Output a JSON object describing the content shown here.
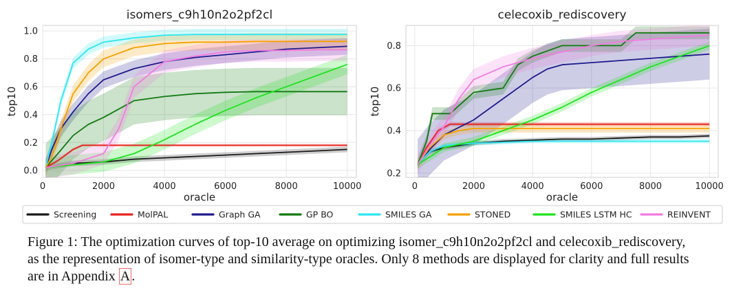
{
  "caption": {
    "line1": "Figure 1: The optimization curves of top-10 average on optimizing isomer_c9h10n2o2pf2cl and celecoxib_rediscovery,",
    "line2": "as the representation of isomer-type and similarity-type oracles. Only 8 methods are displayed for clarity and full results",
    "line3_pre": "are in Appendix ",
    "line3_ref": "A",
    "line3_post": "."
  },
  "chart_data": [
    {
      "type": "line",
      "title": "isomers_c9h10n2o2pf2cl",
      "xlabel": "oracle",
      "ylabel": "top10",
      "xlim": [
        0,
        10300
      ],
      "ylim": [
        -0.05,
        1.04
      ],
      "xticks": [
        0,
        2000,
        4000,
        6000,
        8000,
        10000
      ],
      "yticks": [
        0.0,
        0.2,
        0.4,
        0.6,
        0.8,
        1.0
      ],
      "ytick_labels": [
        "0.0",
        "0.2",
        "0.4",
        "0.6",
        "0.8",
        "1.0"
      ],
      "grid": true,
      "series": [
        {
          "name": "Screening",
          "x": [
            100,
            1000,
            2000,
            3000,
            4000,
            5000,
            6000,
            7000,
            8000,
            9000,
            10000
          ],
          "y": [
            0.02,
            0.05,
            0.06,
            0.08,
            0.09,
            0.1,
            0.11,
            0.12,
            0.13,
            0.14,
            0.15
          ],
          "band": 0.02
        },
        {
          "name": "MolPAL",
          "x": [
            100,
            500,
            1000,
            1300,
            1600,
            10000
          ],
          "y": [
            0.02,
            0.07,
            0.15,
            0.18,
            0.18,
            0.18
          ],
          "band": 0.01
        },
        {
          "name": "Graph GA",
          "x": [
            100,
            300,
            600,
            1000,
            1500,
            2000,
            3000,
            4000,
            5000,
            6000,
            7000,
            8000,
            9000,
            10000
          ],
          "y": [
            0.02,
            0.15,
            0.3,
            0.42,
            0.55,
            0.65,
            0.73,
            0.78,
            0.81,
            0.83,
            0.85,
            0.87,
            0.88,
            0.89
          ],
          "band": 0.06
        },
        {
          "name": "GP BO",
          "x": [
            100,
            500,
            1000,
            1500,
            2000,
            2500,
            3000,
            4000,
            5000,
            6000,
            7000,
            8000,
            9000,
            10000
          ],
          "y": [
            0.02,
            0.12,
            0.25,
            0.33,
            0.38,
            0.44,
            0.5,
            0.53,
            0.55,
            0.56,
            0.565,
            0.565,
            0.565,
            0.565
          ],
          "band": 0.17
        },
        {
          "name": "SMILES GA",
          "x": [
            100,
            300,
            600,
            1000,
            1500,
            2000,
            3000,
            4000,
            5000,
            6000,
            7000,
            8000,
            9000,
            10000
          ],
          "y": [
            0.02,
            0.2,
            0.5,
            0.77,
            0.87,
            0.92,
            0.95,
            0.97,
            0.975,
            0.975,
            0.975,
            0.975,
            0.975,
            0.975
          ],
          "band": 0.04
        },
        {
          "name": "STONED",
          "x": [
            100,
            300,
            600,
            1000,
            1500,
            2000,
            3000,
            4000,
            5000,
            6000,
            7000,
            8000,
            9000,
            10000
          ],
          "y": [
            0.02,
            0.1,
            0.3,
            0.55,
            0.7,
            0.8,
            0.88,
            0.91,
            0.92,
            0.92,
            0.925,
            0.925,
            0.925,
            0.925
          ],
          "band": 0.06
        },
        {
          "name": "SMILES LSTM HC",
          "x": [
            100,
            1000,
            2000,
            3000,
            4000,
            5000,
            6000,
            7000,
            8000,
            9000,
            10000
          ],
          "y": [
            0.02,
            0.04,
            0.06,
            0.12,
            0.22,
            0.33,
            0.43,
            0.52,
            0.6,
            0.68,
            0.76
          ],
          "band": 0.07
        },
        {
          "name": "REINVENT",
          "x": [
            100,
            1000,
            2000,
            2500,
            3000,
            4000,
            5000,
            6000,
            7000,
            8000,
            9000,
            10000
          ],
          "y": [
            0.02,
            0.05,
            0.12,
            0.3,
            0.6,
            0.78,
            0.82,
            0.85,
            0.86,
            0.86,
            0.865,
            0.865
          ],
          "band": 0.08
        }
      ]
    },
    {
      "type": "line",
      "title": "celecoxib_rediscovery",
      "xlabel": "oracle",
      "ylabel": "top10",
      "xlim": [
        -300,
        10300
      ],
      "ylim": [
        0.18,
        0.895
      ],
      "xticks": [
        0,
        2000,
        4000,
        6000,
        8000,
        10000
      ],
      "yticks": [
        0.2,
        0.4,
        0.6,
        0.8
      ],
      "ytick_labels": [
        "0.2",
        "0.4",
        "0.6",
        "0.8"
      ],
      "grid": true,
      "series": [
        {
          "name": "Screening",
          "x": [
            100,
            500,
            1000,
            2000,
            3000,
            4000,
            5000,
            6000,
            7000,
            8000,
            9000,
            10000
          ],
          "y": [
            0.24,
            0.3,
            0.32,
            0.34,
            0.35,
            0.355,
            0.36,
            0.36,
            0.365,
            0.37,
            0.37,
            0.375
          ],
          "band": 0.01
        },
        {
          "name": "MolPAL",
          "x": [
            100,
            400,
            800,
            1200,
            10000
          ],
          "y": [
            0.24,
            0.32,
            0.4,
            0.43,
            0.43
          ],
          "band": 0.01
        },
        {
          "name": "Graph GA",
          "x": [
            100,
            500,
            1000,
            2000,
            3000,
            4000,
            4500,
            5000,
            6000,
            7000,
            8000,
            9000,
            10000
          ],
          "y": [
            0.24,
            0.31,
            0.38,
            0.45,
            0.55,
            0.65,
            0.69,
            0.71,
            0.72,
            0.73,
            0.74,
            0.75,
            0.76
          ],
          "band": 0.12
        },
        {
          "name": "GP BO",
          "x": [
            100,
            400,
            600,
            1200,
            2000,
            3000,
            3500,
            4000,
            5000,
            5500,
            6000,
            7000,
            7500,
            10000
          ],
          "y": [
            0.24,
            0.35,
            0.48,
            0.48,
            0.58,
            0.6,
            0.71,
            0.75,
            0.8,
            0.8,
            0.8,
            0.8,
            0.86,
            0.86
          ],
          "band": 0.03
        },
        {
          "name": "SMILES GA",
          "x": [
            100,
            500,
            1000,
            2000,
            3000,
            4000,
            10000
          ],
          "y": [
            0.24,
            0.3,
            0.33,
            0.34,
            0.345,
            0.35,
            0.35
          ],
          "band": 0.01
        },
        {
          "name": "STONED",
          "x": [
            100,
            500,
            1000,
            1500,
            2000,
            3000,
            10000
          ],
          "y": [
            0.24,
            0.32,
            0.38,
            0.4,
            0.41,
            0.41,
            0.41
          ],
          "band": 0.02
        },
        {
          "name": "SMILES LSTM HC",
          "x": [
            100,
            1000,
            2000,
            3000,
            4000,
            5000,
            6000,
            7000,
            8000,
            9000,
            10000
          ],
          "y": [
            0.24,
            0.32,
            0.35,
            0.4,
            0.45,
            0.51,
            0.58,
            0.64,
            0.7,
            0.75,
            0.8
          ],
          "band": 0.02
        },
        {
          "name": "REINVENT",
          "x": [
            100,
            500,
            1000,
            1500,
            2000,
            3000,
            4000,
            5000,
            6000,
            7000,
            8000,
            9000,
            10000
          ],
          "y": [
            0.24,
            0.33,
            0.42,
            0.55,
            0.64,
            0.7,
            0.74,
            0.77,
            0.8,
            0.82,
            0.83,
            0.84,
            0.85
          ],
          "band": 0.05
        }
      ]
    }
  ],
  "legend": {
    "placement": "bottom",
    "entries": [
      {
        "label": "Screening",
        "color": "#1a1a1a"
      },
      {
        "label": "MolPAL",
        "color": "#e8231f"
      },
      {
        "label": "Graph GA",
        "color": "#1f1c8c"
      },
      {
        "label": "GP BO",
        "color": "#137a13"
      },
      {
        "label": "SMILES GA",
        "color": "#2ee6f0"
      },
      {
        "label": "STONED",
        "color": "#f5a000"
      },
      {
        "label": "SMILES LSTM HC",
        "color": "#1de41d"
      },
      {
        "label": "REINVENT",
        "color": "#f27be0"
      }
    ]
  }
}
